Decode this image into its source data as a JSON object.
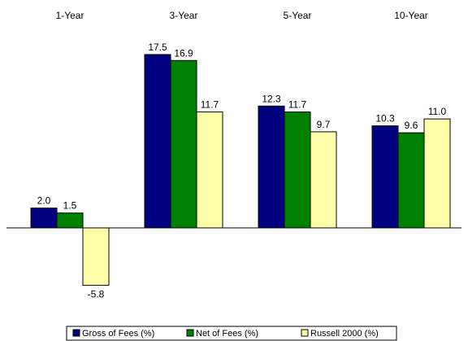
{
  "chart_data": {
    "type": "bar",
    "categories": [
      "1-Year",
      "3-Year",
      "5-Year",
      "10-Year"
    ],
    "series": [
      {
        "name": "Gross of Fees (%)",
        "values": [
          2.0,
          17.5,
          12.3,
          10.3
        ],
        "labels": [
          "2.0",
          "17.5",
          "12.3",
          "10.3"
        ],
        "color": "#000080",
        "stroke": "#000000"
      },
      {
        "name": "Net of Fees (%)",
        "values": [
          1.5,
          16.9,
          11.7,
          9.6
        ],
        "labels": [
          "1.5",
          "16.9",
          "11.7",
          "9.6"
        ],
        "color": "#008000",
        "stroke": "#000000"
      },
      {
        "name": "Russell 2000 (%)",
        "values": [
          -5.8,
          11.7,
          9.7,
          11.0
        ],
        "labels": [
          "-5.8",
          "11.7",
          "9.7",
          "11.0"
        ],
        "color": "#FFFFAA",
        "stroke": "#000000"
      }
    ],
    "title": "",
    "xlabel": "",
    "ylabel": "",
    "category_labels_position": "top",
    "data_labels": true,
    "grid": false,
    "legend_position": "bottom"
  }
}
